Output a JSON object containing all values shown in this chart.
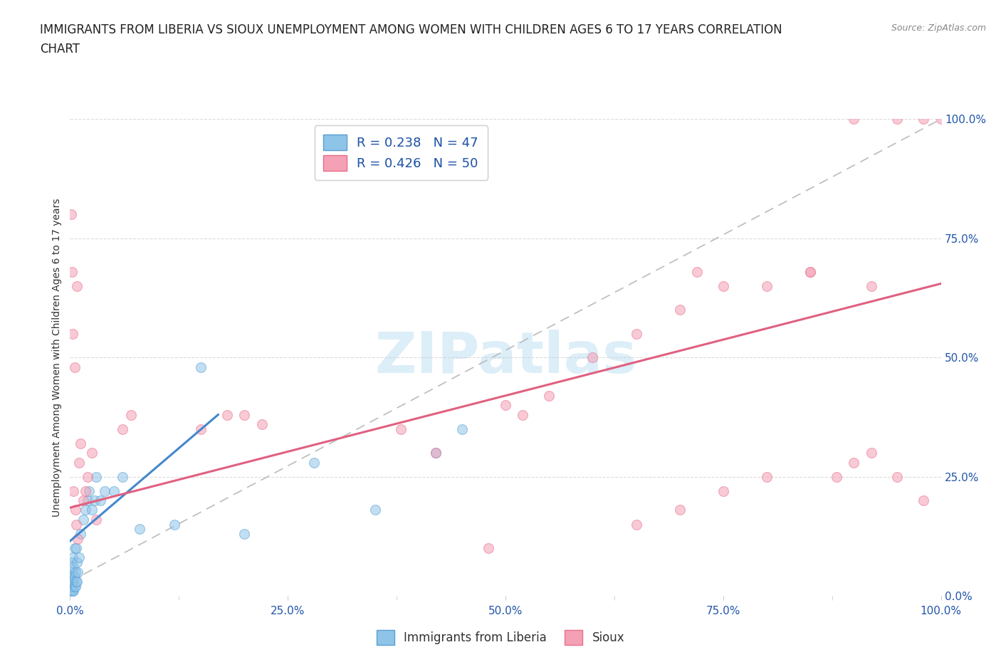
{
  "title_line1": "IMMIGRANTS FROM LIBERIA VS SIOUX UNEMPLOYMENT AMONG WOMEN WITH CHILDREN AGES 6 TO 17 YEARS CORRELATION",
  "title_line2": "CHART",
  "source_text": "Source: ZipAtlas.com",
  "ylabel": "Unemployment Among Women with Children Ages 6 to 17 years",
  "xlim": [
    0.0,
    1.0
  ],
  "ylim": [
    0.0,
    1.0
  ],
  "xtick_labels": [
    "0.0%",
    "",
    "25.0%",
    "",
    "50.0%",
    "",
    "75.0%",
    "",
    "100.0%"
  ],
  "xtick_positions": [
    0.0,
    0.125,
    0.25,
    0.375,
    0.5,
    0.625,
    0.75,
    0.875,
    1.0
  ],
  "ytick_labels_right": [
    "100.0%",
    "75.0%",
    "50.0%",
    "25.0%",
    "0.0%"
  ],
  "ytick_positions_right": [
    1.0,
    0.75,
    0.5,
    0.25,
    0.0
  ],
  "blue_color": "#8ec4e8",
  "pink_color": "#f4a0b5",
  "blue_edge_color": "#5a9fd4",
  "pink_edge_color": "#e8708a",
  "blue_line_color": "#4488cc",
  "pink_line_color": "#e06080",
  "dashed_line_color": "#bbbbbb",
  "watermark_color": "#dceef8",
  "legend_R1": "R = 0.238",
  "legend_N1": "N = 47",
  "legend_R2": "R = 0.426",
  "legend_N2": "N = 50",
  "legend_label1": "Immigrants from Liberia",
  "legend_label2": "Sioux",
  "title_color": "#222222",
  "axis_tick_color": "#2255aa",
  "source_color": "#888888",
  "blue_scatter_x": [
    0.001,
    0.001,
    0.001,
    0.001,
    0.002,
    0.002,
    0.002,
    0.002,
    0.002,
    0.003,
    0.003,
    0.003,
    0.003,
    0.004,
    0.004,
    0.004,
    0.005,
    0.005,
    0.005,
    0.006,
    0.006,
    0.007,
    0.007,
    0.008,
    0.008,
    0.009,
    0.01,
    0.012,
    0.015,
    0.018,
    0.02,
    0.022,
    0.025,
    0.028,
    0.03,
    0.035,
    0.04,
    0.05,
    0.06,
    0.08,
    0.12,
    0.15,
    0.2,
    0.28,
    0.35,
    0.42,
    0.45
  ],
  "blue_scatter_y": [
    0.01,
    0.02,
    0.03,
    0.04,
    0.01,
    0.02,
    0.03,
    0.05,
    0.07,
    0.01,
    0.02,
    0.04,
    0.08,
    0.01,
    0.03,
    0.06,
    0.02,
    0.04,
    0.1,
    0.02,
    0.05,
    0.03,
    0.1,
    0.03,
    0.07,
    0.05,
    0.08,
    0.13,
    0.16,
    0.18,
    0.2,
    0.22,
    0.18,
    0.2,
    0.25,
    0.2,
    0.22,
    0.22,
    0.25,
    0.14,
    0.15,
    0.48,
    0.13,
    0.28,
    0.18,
    0.3,
    0.35
  ],
  "pink_scatter_x": [
    0.001,
    0.002,
    0.003,
    0.004,
    0.005,
    0.006,
    0.007,
    0.008,
    0.009,
    0.01,
    0.012,
    0.015,
    0.018,
    0.02,
    0.025,
    0.03,
    0.06,
    0.07,
    0.15,
    0.18,
    0.2,
    0.22,
    0.38,
    0.42,
    0.48,
    0.5,
    0.52,
    0.55,
    0.6,
    0.65,
    0.7,
    0.72,
    0.75,
    0.8,
    0.85,
    0.88,
    0.9,
    0.92,
    0.95,
    0.98,
    1.0,
    0.98,
    0.95,
    0.92,
    0.9,
    0.85,
    0.8,
    0.75,
    0.7,
    0.65
  ],
  "pink_scatter_y": [
    0.8,
    0.68,
    0.55,
    0.22,
    0.48,
    0.18,
    0.15,
    0.65,
    0.12,
    0.28,
    0.32,
    0.2,
    0.22,
    0.25,
    0.3,
    0.16,
    0.35,
    0.38,
    0.35,
    0.38,
    0.38,
    0.36,
    0.35,
    0.3,
    0.1,
    0.4,
    0.38,
    0.42,
    0.5,
    0.55,
    0.6,
    0.68,
    0.65,
    0.65,
    0.68,
    0.25,
    0.28,
    0.3,
    1.0,
    1.0,
    1.0,
    0.2,
    0.25,
    0.65,
    1.0,
    0.68,
    0.25,
    0.22,
    0.18,
    0.15
  ],
  "blue_line_x": [
    0.0,
    0.17
  ],
  "blue_line_y": [
    0.115,
    0.38
  ],
  "pink_line_x": [
    0.0,
    1.0
  ],
  "pink_line_y": [
    0.185,
    0.655
  ],
  "dash_line_x": [
    0.0,
    1.0
  ],
  "dash_line_y": [
    0.03,
    1.0
  ],
  "marker_size": 100,
  "marker_alpha": 0.55,
  "background_color": "#ffffff",
  "grid_color": "#cccccc",
  "grid_alpha": 0.7
}
